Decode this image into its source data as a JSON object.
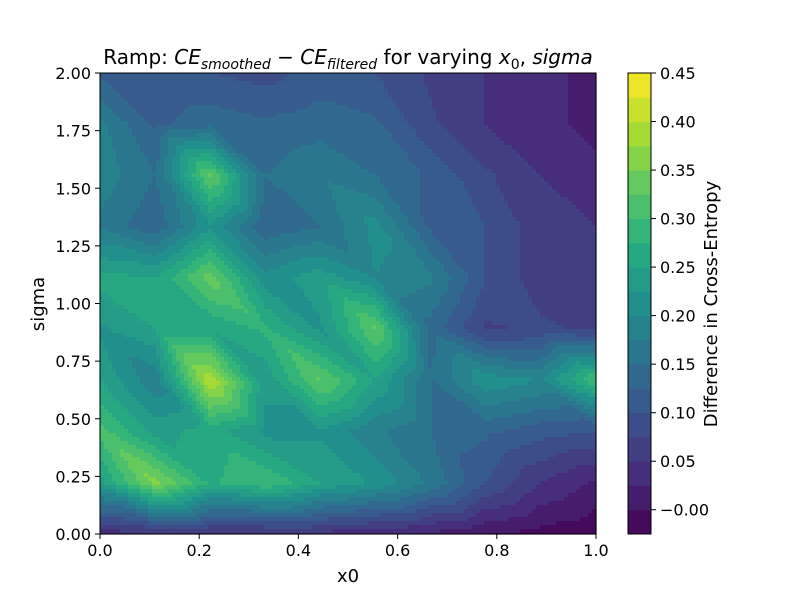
{
  "chart_data": {
    "type": "heatmap",
    "subtype": "filled-contour",
    "title": {
      "prefix": "Ramp: ",
      "ce": "CE",
      "sub_smoothed": "smoothed",
      "minus": " − ",
      "sub_filtered": "filtered",
      "middle": " for varying ",
      "x_var": "x",
      "x_sub": "0",
      "sep": ", ",
      "sigma": "sigma"
    },
    "xlabel": "x0",
    "ylabel": "sigma",
    "colorbar_label": "Difference in Cross-Entropy",
    "colormap": "viridis",
    "xlim": [
      0,
      1
    ],
    "ylim": [
      0,
      2
    ],
    "xticks": [
      "0.0",
      "0.2",
      "0.4",
      "0.6",
      "0.8",
      "1.0"
    ],
    "yticks": [
      "0.00",
      "0.25",
      "0.50",
      "0.75",
      "1.00",
      "1.25",
      "1.50",
      "1.75",
      "2.00"
    ],
    "colorbar_range": [
      -0.025,
      0.45
    ],
    "colorbar_ticks": [
      "−0.00",
      "0.05",
      "0.10",
      "0.15",
      "0.20",
      "0.25",
      "0.30",
      "0.35",
      "0.40",
      "0.45"
    ],
    "grid": false,
    "x_values": [
      0,
      0.1111,
      0.2222,
      0.3333,
      0.4444,
      0.5556,
      0.6667,
      0.7778,
      0.8889,
      1.0
    ],
    "y_values": [
      0,
      0.2222,
      0.4444,
      0.6667,
      0.8889,
      1.1111,
      1.3333,
      1.5556,
      1.7778,
      2.0
    ],
    "z_grid": [
      [
        0.03,
        0.05,
        0.04,
        0.04,
        0.04,
        0.03,
        0.02,
        0.0,
        -0.01,
        -0.02
      ],
      [
        0.24,
        0.36,
        0.27,
        0.3,
        0.25,
        0.22,
        0.17,
        0.1,
        0.05,
        0.02
      ],
      [
        0.31,
        0.24,
        0.26,
        0.22,
        0.22,
        0.18,
        0.15,
        0.13,
        0.11,
        0.1
      ],
      [
        0.25,
        0.18,
        0.4,
        0.23,
        0.33,
        0.25,
        0.15,
        0.22,
        0.2,
        0.3
      ],
      [
        0.22,
        0.25,
        0.25,
        0.28,
        0.22,
        0.33,
        0.14,
        0.07,
        0.08,
        0.07
      ],
      [
        0.26,
        0.25,
        0.34,
        0.21,
        0.24,
        0.2,
        0.18,
        0.1,
        0.06,
        0.06
      ],
      [
        0.17,
        0.13,
        0.22,
        0.13,
        0.15,
        0.21,
        0.12,
        0.1,
        0.06,
        0.05
      ],
      [
        0.19,
        0.15,
        0.33,
        0.15,
        0.17,
        0.15,
        0.12,
        0.08,
        0.05,
        0.03
      ],
      [
        0.18,
        0.12,
        0.14,
        0.13,
        0.14,
        0.13,
        0.08,
        0.05,
        0.03,
        0.02
      ],
      [
        0.12,
        0.1,
        0.1,
        0.09,
        0.11,
        0.1,
        0.07,
        0.05,
        0.03,
        0.02
      ]
    ]
  }
}
